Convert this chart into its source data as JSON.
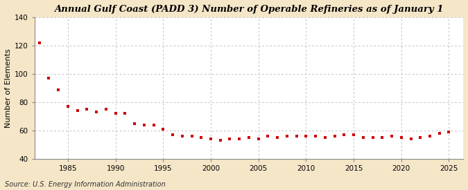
{
  "title": "Annual Gulf Coast (PADD 3) Number of Operable Refineries as of January 1",
  "ylabel": "Number of Elements",
  "source": "Source: U.S. Energy Information Administration",
  "outer_bg": "#f5e6c8",
  "plot_bg": "#ffffff",
  "marker_color": "#cc0000",
  "grid_color": "#aaaaaa",
  "xlim": [
    1981.5,
    2026.5
  ],
  "ylim": [
    40,
    140
  ],
  "yticks": [
    40,
    60,
    80,
    100,
    120,
    140
  ],
  "xticks": [
    1985,
    1990,
    1995,
    2000,
    2005,
    2010,
    2015,
    2020,
    2025
  ],
  "years": [
    1982,
    1983,
    1984,
    1985,
    1986,
    1987,
    1988,
    1989,
    1990,
    1991,
    1992,
    1993,
    1994,
    1995,
    1996,
    1997,
    1998,
    1999,
    2000,
    2001,
    2002,
    2003,
    2004,
    2005,
    2006,
    2007,
    2008,
    2009,
    2010,
    2011,
    2012,
    2013,
    2014,
    2015,
    2016,
    2017,
    2018,
    2019,
    2020,
    2021,
    2022,
    2023,
    2024,
    2025
  ],
  "values": [
    122,
    97,
    89,
    77,
    74,
    75,
    73,
    75,
    72,
    72,
    65,
    64,
    64,
    61,
    57,
    56,
    56,
    55,
    54,
    53,
    54,
    54,
    55,
    54,
    56,
    55,
    56,
    56,
    56,
    56,
    55,
    56,
    57,
    57,
    55,
    55,
    55,
    56,
    55,
    54,
    55,
    56,
    58,
    59
  ],
  "title_fontsize": 9.5,
  "ylabel_fontsize": 8,
  "tick_fontsize": 7.5,
  "source_fontsize": 7
}
